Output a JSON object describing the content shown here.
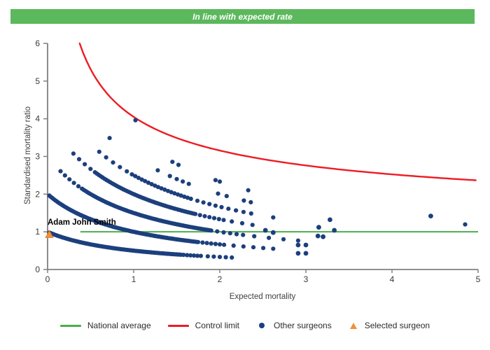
{
  "banner": {
    "text": "In line with expected rate",
    "bg_color": "#5cb85c",
    "text_color": "#ffffff"
  },
  "chart_data": {
    "type": "scatter",
    "xlabel": "Expected mortality",
    "ylabel": "Standardised mortality ratio",
    "xlim": [
      0,
      5
    ],
    "ylim": [
      0,
      6
    ],
    "x_ticks": [
      0,
      1,
      2,
      3,
      4,
      5
    ],
    "y_ticks": [
      0,
      1,
      2,
      3,
      4,
      5,
      6
    ],
    "grid": false,
    "axis_color": "#808080",
    "tick_label_color": "#3a3a3a",
    "legend_position": "bottom-center",
    "series": {
      "national_average": {
        "label": "National average",
        "color": "#4cae4c",
        "y": 1.0,
        "x_from": 0.38,
        "x_to": 5.0
      },
      "control_limit": {
        "label": "Control limit",
        "color": "#ed1c24",
        "formula": "y = 1 + a/sqrt(x)",
        "a": 3.05,
        "x_from": 0.372,
        "x_to": 5.0,
        "endpoints_sampled": [
          [
            0.38,
            5.95
          ],
          [
            1.0,
            4.05
          ],
          [
            2.0,
            3.16
          ],
          [
            3.0,
            2.76
          ],
          [
            4.0,
            2.53
          ],
          [
            5.0,
            2.36
          ]
        ]
      },
      "other_surgeons": {
        "label": "Other surgeons",
        "color": "#1c3f7d",
        "bands_formula": "y = deaths/(1+x), bands listed as [deaths, x_from, x_to, x_step]",
        "bands": [
          [
            1,
            0.02,
            1.55,
            0.018
          ],
          [
            1,
            1.58,
            1.78,
            0.04
          ],
          [
            1,
            1.86,
            2.14,
            0.07
          ],
          [
            2,
            0.02,
            1.75,
            0.018
          ],
          [
            2,
            1.8,
            2.06,
            0.05
          ],
          [
            2,
            2.16,
            2.62,
            0.115
          ],
          [
            3,
            0.15,
            0.36,
            0.052
          ],
          [
            3,
            0.4,
            1.9,
            0.02
          ],
          [
            3,
            1.97,
            2.27,
            0.075
          ],
          [
            3,
            2.4,
            2.92,
            0.17
          ],
          [
            4,
            0.3,
            0.5,
            0.066
          ],
          [
            4,
            0.55,
            1.72,
            0.022
          ],
          [
            4,
            1.77,
            2.07,
            0.055
          ],
          [
            4,
            2.14,
            2.38,
            0.12
          ],
          [
            5,
            0.6,
            0.92,
            0.08
          ],
          [
            5,
            0.98,
            1.66,
            0.038
          ],
          [
            5,
            1.74,
            2.02,
            0.07
          ],
          [
            5,
            2.1,
            2.4,
            0.088
          ],
          [
            5,
            2.62,
            2.62,
            1
          ],
          [
            6,
            0.72,
            0.72,
            1
          ],
          [
            6,
            1.28,
            1.42,
            0.14
          ],
          [
            6,
            1.5,
            1.64,
            0.07
          ],
          [
            6,
            1.98,
            2.08,
            0.1
          ],
          [
            6,
            2.28,
            2.36,
            0.08
          ],
          [
            7,
            1.45,
            1.52,
            0.07
          ],
          [
            7,
            1.95,
            2.0,
            0.05
          ],
          [
            7,
            2.33,
            2.33,
            1
          ],
          [
            7,
            4.85,
            4.85,
            1
          ],
          [
            8,
            1.02,
            1.02,
            1
          ]
        ],
        "extra_points": [
          [
            2.53,
            1.04
          ],
          [
            2.62,
            0.98
          ],
          [
            2.91,
            0.65
          ],
          [
            3.0,
            0.65
          ],
          [
            2.91,
            0.43
          ],
          [
            3.0,
            0.43
          ],
          [
            3.14,
            0.89
          ],
          [
            3.2,
            0.87
          ],
          [
            3.15,
            1.12
          ],
          [
            3.28,
            1.32
          ],
          [
            3.33,
            1.04
          ],
          [
            4.45,
            1.42
          ]
        ]
      },
      "selected_surgeon": {
        "label": "Selected surgeon",
        "color": "#f0913a",
        "x": 0.02,
        "y": 0.93
      }
    },
    "annotation": {
      "text": "Adam John Smith",
      "x": 0,
      "y": 1.35
    }
  },
  "legend": {
    "order": [
      "national_average",
      "control_limit",
      "other_surgeons",
      "selected_surgeon"
    ]
  }
}
